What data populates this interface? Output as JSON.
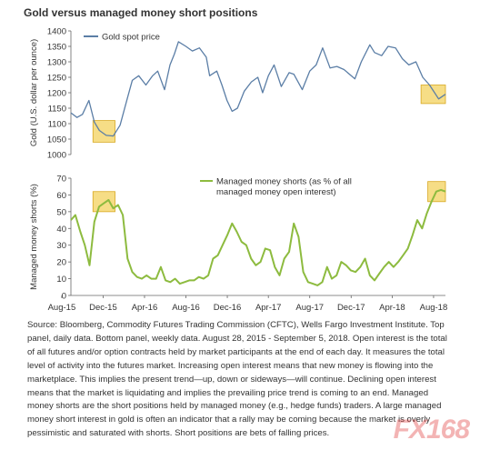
{
  "title": "Gold versus managed money short positions",
  "watermark": "FX168",
  "source_text": "Source: Bloomberg, Commodity Futures Trading Commission (CFTC), Wells Fargo Investment Institute. Top panel, daily data. Bottom panel, weekly data. August 28, 2015 - September 5, 2018. Open interest is the total of all futures and/or option contracts held by market participants at the end of each day. It measures the total level of activity into the futures market. Increasing open interest means that new money is flowing into the marketplace. This implies the present trend—up, down or sideways—will continue. Declining open interest means that the market is liquidating and implies the prevailing price trend is coming to an end. Managed money shorts are the short positions held by managed money (e.g., hedge funds) traders. A large managed money short interest in gold is often an indicator that a rally may be coming because the market is overly pessimistic and saturated with shorts. Short positions are bets of falling prices.",
  "colors": {
    "gold": "#5b7ea6",
    "shorts": "#8dbb3f",
    "highlight_fill": "#f6dd86",
    "highlight_stroke": "#d8a820"
  },
  "chart_data": [
    {
      "type": "line",
      "ylabel": "Gold (U.S. dollar per ounce)",
      "ylim": [
        1000,
        1400
      ],
      "yticks": [
        1000,
        1050,
        1100,
        1150,
        1200,
        1250,
        1300,
        1350,
        1400
      ],
      "grid": false,
      "legend": "top-left",
      "series": [
        {
          "name": "Gold spot price",
          "x": [
            "2015-08-28",
            "2015-09-15",
            "2015-10-01",
            "2015-10-20",
            "2015-11-05",
            "2015-11-20",
            "2015-12-10",
            "2015-12-31",
            "2016-01-20",
            "2016-02-10",
            "2016-02-25",
            "2016-03-15",
            "2016-04-05",
            "2016-04-25",
            "2016-05-10",
            "2016-05-30",
            "2016-06-15",
            "2016-06-28",
            "2016-07-10",
            "2016-08-01",
            "2016-08-20",
            "2016-09-10",
            "2016-09-30",
            "2016-10-10",
            "2016-10-31",
            "2016-11-15",
            "2016-11-30",
            "2016-12-15",
            "2016-12-31",
            "2017-01-20",
            "2017-02-10",
            "2017-03-01",
            "2017-03-15",
            "2017-04-01",
            "2017-04-18",
            "2017-05-09",
            "2017-06-01",
            "2017-06-15",
            "2017-07-10",
            "2017-08-01",
            "2017-08-20",
            "2017-09-08",
            "2017-09-30",
            "2017-10-20",
            "2017-11-10",
            "2017-12-12",
            "2017-12-31",
            "2018-01-25",
            "2018-02-08",
            "2018-03-01",
            "2018-03-20",
            "2018-04-11",
            "2018-05-01",
            "2018-05-20",
            "2018-06-10",
            "2018-06-30",
            "2018-07-20",
            "2018-08-16",
            "2018-09-05"
          ],
          "values": [
            1135,
            1120,
            1130,
            1175,
            1105,
            1078,
            1062,
            1060,
            1095,
            1180,
            1240,
            1255,
            1225,
            1255,
            1270,
            1210,
            1290,
            1325,
            1365,
            1350,
            1335,
            1345,
            1315,
            1255,
            1270,
            1225,
            1175,
            1140,
            1150,
            1205,
            1235,
            1250,
            1200,
            1255,
            1290,
            1220,
            1265,
            1260,
            1210,
            1270,
            1290,
            1345,
            1280,
            1285,
            1275,
            1245,
            1300,
            1355,
            1330,
            1320,
            1350,
            1345,
            1310,
            1290,
            1300,
            1250,
            1225,
            1180,
            1195
          ]
        }
      ],
      "highlights": [
        {
          "x": [
            "2015-11-01",
            "2016-01-05"
          ],
          "y": [
            1040,
            1110
          ]
        },
        {
          "x": [
            "2018-06-25",
            "2018-09-05"
          ],
          "y": [
            1165,
            1225
          ]
        }
      ]
    },
    {
      "type": "line",
      "ylabel": "Managed money shorts (%)",
      "ylim": [
        0,
        70
      ],
      "yticks": [
        0,
        10,
        20,
        30,
        40,
        50,
        60,
        70
      ],
      "xticks": [
        "Aug-15",
        "Dec-15",
        "Apr-16",
        "Aug-16",
        "Dec-16",
        "Apr-17",
        "Aug-17",
        "Dec-17",
        "Apr-18",
        "Aug-18"
      ],
      "grid": false,
      "legend": "top-right",
      "series": [
        {
          "name": "Managed money shorts (as % of all managed money open interest)",
          "x": [
            "2015-08-28",
            "2015-09-10",
            "2015-09-25",
            "2015-10-08",
            "2015-10-22",
            "2015-11-05",
            "2015-11-19",
            "2015-12-03",
            "2015-12-17",
            "2015-12-31",
            "2016-01-14",
            "2016-01-28",
            "2016-02-11",
            "2016-02-25",
            "2016-03-10",
            "2016-03-24",
            "2016-04-07",
            "2016-04-21",
            "2016-05-05",
            "2016-05-19",
            "2016-06-02",
            "2016-06-16",
            "2016-06-30",
            "2016-07-14",
            "2016-07-28",
            "2016-08-11",
            "2016-08-25",
            "2016-09-08",
            "2016-09-22",
            "2016-10-06",
            "2016-10-20",
            "2016-11-03",
            "2016-11-17",
            "2016-12-01",
            "2016-12-15",
            "2016-12-29",
            "2017-01-12",
            "2017-01-26",
            "2017-02-09",
            "2017-02-23",
            "2017-03-09",
            "2017-03-23",
            "2017-04-06",
            "2017-04-20",
            "2017-05-04",
            "2017-05-18",
            "2017-06-01",
            "2017-06-15",
            "2017-06-29",
            "2017-07-13",
            "2017-07-27",
            "2017-08-10",
            "2017-08-24",
            "2017-09-07",
            "2017-09-21",
            "2017-10-05",
            "2017-10-19",
            "2017-11-02",
            "2017-11-16",
            "2017-11-30",
            "2017-12-14",
            "2017-12-28",
            "2018-01-11",
            "2018-01-25",
            "2018-02-08",
            "2018-02-22",
            "2018-03-08",
            "2018-03-22",
            "2018-04-05",
            "2018-04-19",
            "2018-05-03",
            "2018-05-17",
            "2018-05-31",
            "2018-06-14",
            "2018-06-28",
            "2018-07-12",
            "2018-07-26",
            "2018-08-09",
            "2018-08-23",
            "2018-09-05"
          ],
          "values": [
            45,
            48,
            38,
            30,
            18,
            44,
            53,
            55,
            57,
            52,
            54,
            48,
            22,
            14,
            11,
            10,
            12,
            10,
            10,
            17,
            9,
            8,
            10,
            7,
            8,
            9,
            9,
            11,
            10,
            12,
            22,
            24,
            30,
            36,
            43,
            38,
            32,
            30,
            22,
            18,
            20,
            28,
            27,
            17,
            12,
            22,
            26,
            43,
            35,
            14,
            8,
            7,
            6,
            8,
            17,
            10,
            12,
            20,
            18,
            15,
            14,
            17,
            22,
            12,
            9,
            13,
            17,
            20,
            17,
            20,
            24,
            28,
            36,
            45,
            40,
            49,
            56,
            62,
            63,
            62
          ]
        }
      ],
      "highlights": [
        {
          "x": [
            "2015-11-01",
            "2016-01-05"
          ],
          "y": [
            50,
            62
          ]
        },
        {
          "x": [
            "2018-07-15",
            "2018-09-05"
          ],
          "y": [
            56,
            68
          ]
        }
      ]
    }
  ]
}
